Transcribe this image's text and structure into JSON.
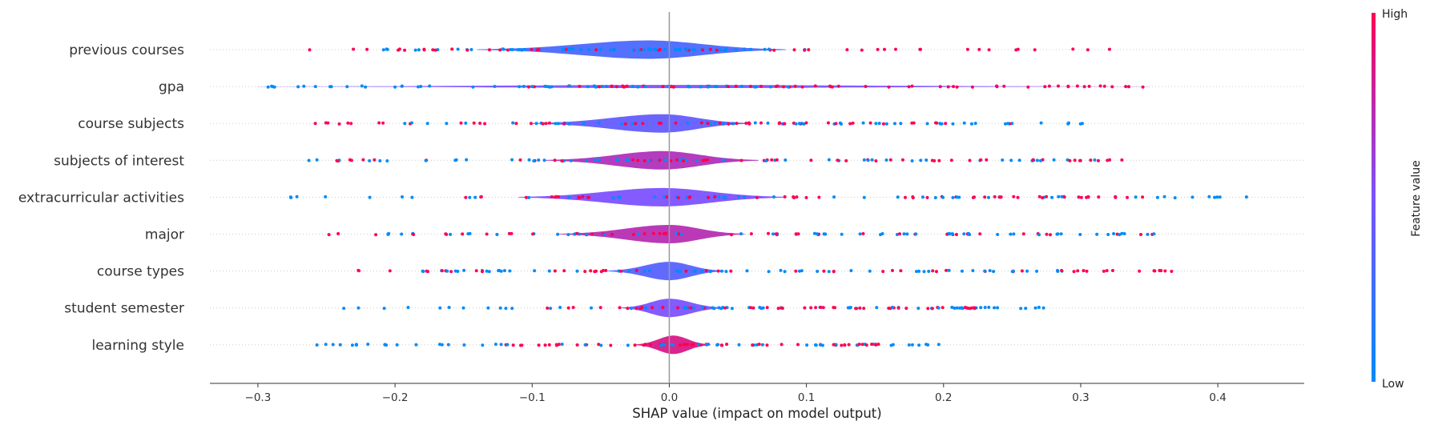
{
  "chart_data": {
    "type": "scatter",
    "subtype": "shap-violin-summary",
    "title": "",
    "xlabel": "SHAP value (impact on model output)",
    "ylabel": "",
    "xlim": [
      -0.335,
      0.463
    ],
    "x_ticks": [
      -0.3,
      -0.2,
      -0.1,
      0.0,
      0.1,
      0.2,
      0.3,
      0.4
    ],
    "x_tick_labels": [
      "−0.3",
      "−0.2",
      "−0.1",
      "0.0",
      "0.1",
      "0.2",
      "0.3",
      "0.4"
    ],
    "features": [
      {
        "name": "previous courses",
        "low_range": [
          -0.22,
          0.1
        ],
        "high_range": [
          -0.27,
          0.33
        ],
        "violin": {
          "x_min": -0.14,
          "x_max": 0.085,
          "mode": -0.015,
          "max_half_height": 0.36
        },
        "color_value": 0.3
      },
      {
        "name": "gpa",
        "low_range": [
          -0.3,
          0.1
        ],
        "high_range": [
          -0.12,
          0.35
        ],
        "violin": {
          "x_min": -0.3,
          "x_max": 0.35,
          "mode": 0.0,
          "max_half_height": 0.04
        },
        "color_value": 0.5
      },
      {
        "name": "course subjects",
        "low_range": [
          -0.2,
          0.32
        ],
        "high_range": [
          -0.26,
          0.25
        ],
        "violin": {
          "x_min": -0.1,
          "x_max": 0.06,
          "mode": -0.005,
          "max_half_height": 0.36
        },
        "color_value": 0.4
      },
      {
        "name": "subjects of interest",
        "low_range": [
          -0.27,
          0.32
        ],
        "high_range": [
          -0.27,
          0.35
        ],
        "violin": {
          "x_min": -0.09,
          "x_max": 0.065,
          "mode": -0.005,
          "max_half_height": 0.36
        },
        "color_value": 0.7
      },
      {
        "name": "extracurricular activities",
        "low_range": [
          -0.29,
          0.43
        ],
        "high_range": [
          -0.15,
          0.35
        ],
        "violin": {
          "x_min": -0.11,
          "x_max": 0.085,
          "mode": -0.005,
          "max_half_height": 0.36
        },
        "color_value": 0.5
      },
      {
        "name": "major",
        "low_range": [
          -0.22,
          0.36
        ],
        "high_range": [
          -0.25,
          0.36
        ],
        "violin": {
          "x_min": -0.08,
          "x_max": 0.055,
          "mode": 0.0,
          "max_half_height": 0.36
        },
        "color_value": 0.72
      },
      {
        "name": "course types",
        "low_range": [
          -0.19,
          0.29
        ],
        "high_range": [
          -0.23,
          0.38
        ],
        "violin": {
          "x_min": -0.045,
          "x_max": 0.04,
          "mode": 0.0,
          "max_half_height": 0.36
        },
        "color_value": 0.35
      },
      {
        "name": "student semester",
        "low_range": [
          -0.24,
          0.28
        ],
        "high_range": [
          -0.13,
          0.23
        ],
        "violin": {
          "x_min": -0.035,
          "x_max": 0.04,
          "mode": 0.0,
          "max_half_height": 0.36
        },
        "color_value": 0.5
      },
      {
        "name": "learning style",
        "low_range": [
          -0.26,
          0.2
        ],
        "high_range": [
          -0.15,
          0.16
        ],
        "violin": {
          "x_min": -0.025,
          "x_max": 0.03,
          "mode": 0.003,
          "max_half_height": 0.36
        },
        "color_value": 0.85
      }
    ],
    "colorbar": {
      "label": "Feature value",
      "high_label": "High",
      "low_label": "Low",
      "low_color": "#008bfb",
      "high_color": "#ff0052"
    },
    "grid": false,
    "zero_line": true
  }
}
